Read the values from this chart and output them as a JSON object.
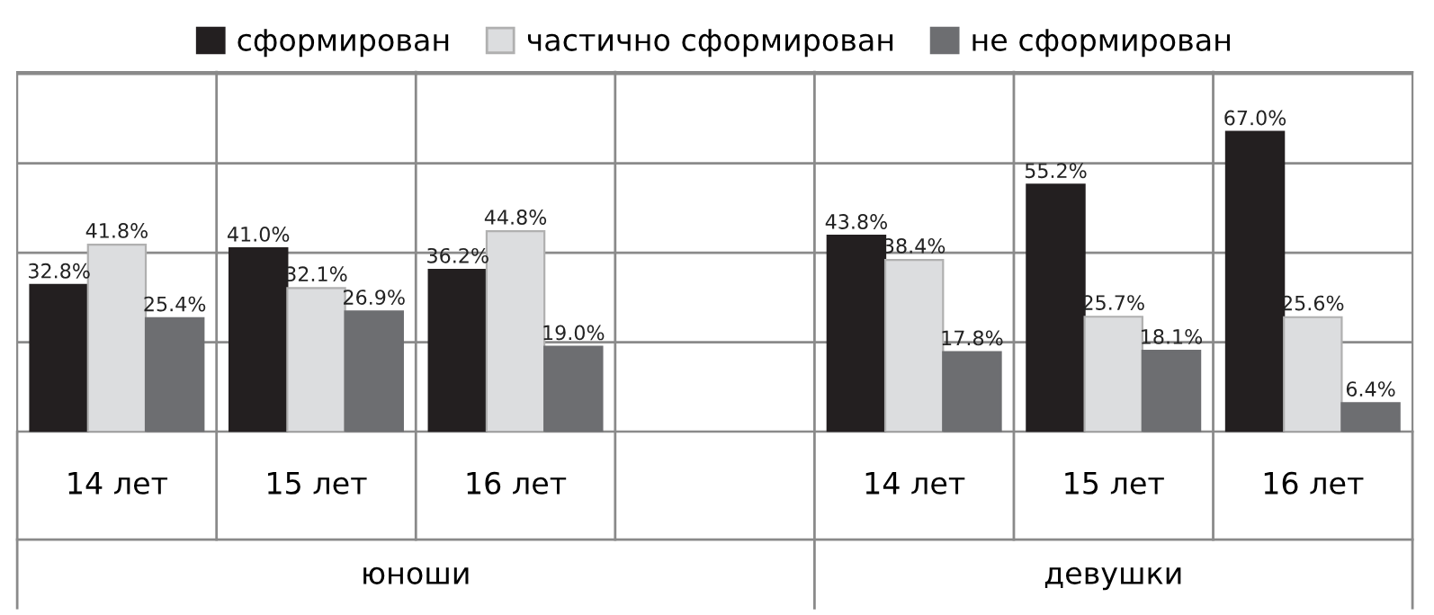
{
  "chart_data": {
    "type": "bar",
    "categories": [
      "14 лет",
      "15 лет",
      "16 лет",
      null,
      "14 лет",
      "15 лет",
      "16 лет"
    ],
    "series": [
      {
        "name": "сформирован",
        "color": "#231f20",
        "values": [
          32.8,
          41.0,
          36.2,
          null,
          43.8,
          55.2,
          67.0
        ],
        "value_labels": [
          "32.8%",
          "41.0%",
          "36.2%",
          null,
          "43.8%",
          "55.2%",
          "67.0%"
        ]
      },
      {
        "name": "частично сформирован",
        "color": "#dcdddf",
        "values": [
          41.8,
          32.1,
          44.8,
          null,
          38.4,
          25.7,
          25.6
        ],
        "value_labels": [
          "41.8%",
          "32.1%",
          "44.8%",
          null,
          "38.4%",
          "25.7%",
          "25.6%"
        ]
      },
      {
        "name": "не сформирован",
        "color": "#6d6e71",
        "values": [
          25.4,
          26.9,
          19.0,
          null,
          17.8,
          18.1,
          6.4
        ],
        "value_labels": [
          "25.4%",
          "26.9%",
          "19.0%",
          null,
          "17.8%",
          "18.1%",
          "6.4%"
        ]
      }
    ],
    "annotations": [
      "юноши",
      "девушки"
    ],
    "tick_labels": "x",
    "grid": "y",
    "legend": "top"
  }
}
